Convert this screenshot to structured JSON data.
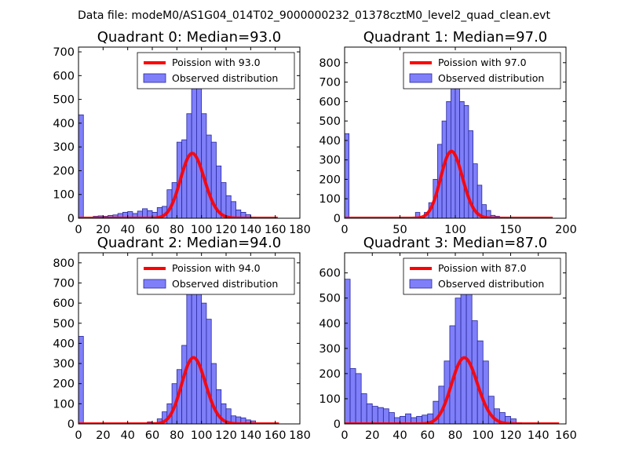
{
  "figure": {
    "suptitle": "Data file: modeM0/AS1G04_014T02_9000000232_01378cztM0_level2_quad_clean.evt"
  },
  "colors": {
    "bar_fill": "#7f7ff9",
    "bar_edge": "#27279c",
    "poisson_line": "#ff0000"
  },
  "chart_data": [
    {
      "type": "bar",
      "title": "Quadrant 0: Median=93.0",
      "xlim": [
        0,
        180
      ],
      "ylim": [
        0,
        720
      ],
      "xticks": [
        0,
        20,
        40,
        60,
        80,
        100,
        120,
        140,
        160,
        180
      ],
      "yticks": [
        0,
        100,
        200,
        300,
        400,
        500,
        600,
        700
      ],
      "legend": [
        "Poission with 93.0",
        "Observed distribution"
      ],
      "legend_position": "top-right",
      "bin_width": 4,
      "bins": [
        {
          "x": 0,
          "y": 435
        },
        {
          "x": 4,
          "y": 0
        },
        {
          "x": 8,
          "y": 3
        },
        {
          "x": 12,
          "y": 8
        },
        {
          "x": 16,
          "y": 10
        },
        {
          "x": 20,
          "y": 8
        },
        {
          "x": 24,
          "y": 12
        },
        {
          "x": 28,
          "y": 14
        },
        {
          "x": 32,
          "y": 20
        },
        {
          "x": 36,
          "y": 25
        },
        {
          "x": 40,
          "y": 28
        },
        {
          "x": 44,
          "y": 20
        },
        {
          "x": 48,
          "y": 30
        },
        {
          "x": 52,
          "y": 40
        },
        {
          "x": 56,
          "y": 32
        },
        {
          "x": 60,
          "y": 25
        },
        {
          "x": 64,
          "y": 45
        },
        {
          "x": 68,
          "y": 50
        },
        {
          "x": 72,
          "y": 120
        },
        {
          "x": 76,
          "y": 150
        },
        {
          "x": 80,
          "y": 320
        },
        {
          "x": 84,
          "y": 330
        },
        {
          "x": 88,
          "y": 440
        },
        {
          "x": 92,
          "y": 690
        },
        {
          "x": 96,
          "y": 600
        },
        {
          "x": 100,
          "y": 440
        },
        {
          "x": 104,
          "y": 350
        },
        {
          "x": 108,
          "y": 320
        },
        {
          "x": 112,
          "y": 220
        },
        {
          "x": 116,
          "y": 150
        },
        {
          "x": 120,
          "y": 95
        },
        {
          "x": 124,
          "y": 70
        },
        {
          "x": 128,
          "y": 35
        },
        {
          "x": 132,
          "y": 25
        },
        {
          "x": 136,
          "y": 15
        },
        {
          "x": 140,
          "y": 5
        }
      ],
      "poisson_mean": 93.0,
      "poisson_scale": 6600,
      "poisson_xrange": [
        0,
        162
      ]
    },
    {
      "type": "bar",
      "title": "Quadrant 1: Median=97.0",
      "xlim": [
        0,
        200
      ],
      "ylim": [
        0,
        880
      ],
      "xticks": [
        0,
        50,
        100,
        150,
        200
      ],
      "yticks": [
        0,
        100,
        200,
        300,
        400,
        500,
        600,
        700,
        800
      ],
      "legend": [
        "Poission with 97.0",
        "Observed distribution"
      ],
      "legend_position": "top-right",
      "bin_width": 4,
      "bins": [
        {
          "x": 0,
          "y": 435
        },
        {
          "x": 64,
          "y": 30
        },
        {
          "x": 68,
          "y": 5
        },
        {
          "x": 72,
          "y": 30
        },
        {
          "x": 76,
          "y": 80
        },
        {
          "x": 80,
          "y": 200
        },
        {
          "x": 84,
          "y": 380
        },
        {
          "x": 88,
          "y": 500
        },
        {
          "x": 92,
          "y": 600
        },
        {
          "x": 96,
          "y": 790
        },
        {
          "x": 100,
          "y": 840
        },
        {
          "x": 104,
          "y": 600
        },
        {
          "x": 108,
          "y": 580
        },
        {
          "x": 112,
          "y": 450
        },
        {
          "x": 116,
          "y": 280
        },
        {
          "x": 120,
          "y": 170
        },
        {
          "x": 124,
          "y": 70
        },
        {
          "x": 128,
          "y": 40
        },
        {
          "x": 132,
          "y": 15
        },
        {
          "x": 136,
          "y": 10
        },
        {
          "x": 140,
          "y": 5
        },
        {
          "x": 144,
          "y": 3
        }
      ],
      "poisson_mean": 97.0,
      "poisson_scale": 8500,
      "poisson_xrange": [
        0,
        188
      ]
    },
    {
      "type": "bar",
      "title": "Quadrant 2: Median=94.0",
      "xlim": [
        0,
        180
      ],
      "ylim": [
        0,
        850
      ],
      "xticks": [
        0,
        20,
        40,
        60,
        80,
        100,
        120,
        140,
        160,
        180
      ],
      "yticks": [
        0,
        100,
        200,
        300,
        400,
        500,
        600,
        700,
        800
      ],
      "legend": [
        "Poission with 94.0",
        "Observed distribution"
      ],
      "legend_position": "top-right",
      "bin_width": 4,
      "bins": [
        {
          "x": 0,
          "y": 435
        },
        {
          "x": 56,
          "y": 10
        },
        {
          "x": 60,
          "y": 5
        },
        {
          "x": 64,
          "y": 25
        },
        {
          "x": 68,
          "y": 60
        },
        {
          "x": 72,
          "y": 100
        },
        {
          "x": 76,
          "y": 200
        },
        {
          "x": 80,
          "y": 270
        },
        {
          "x": 84,
          "y": 390
        },
        {
          "x": 88,
          "y": 650
        },
        {
          "x": 92,
          "y": 700
        },
        {
          "x": 96,
          "y": 780
        },
        {
          "x": 100,
          "y": 600
        },
        {
          "x": 104,
          "y": 520
        },
        {
          "x": 108,
          "y": 300
        },
        {
          "x": 112,
          "y": 170
        },
        {
          "x": 116,
          "y": 100
        },
        {
          "x": 120,
          "y": 75
        },
        {
          "x": 124,
          "y": 40
        },
        {
          "x": 128,
          "y": 35
        },
        {
          "x": 132,
          "y": 30
        },
        {
          "x": 136,
          "y": 20
        },
        {
          "x": 140,
          "y": 15
        }
      ],
      "poisson_mean": 94.0,
      "poisson_scale": 8000,
      "poisson_xrange": [
        0,
        163
      ]
    },
    {
      "type": "bar",
      "title": "Quadrant 3: Median=87.0",
      "xlim": [
        0,
        160
      ],
      "ylim": [
        0,
        680
      ],
      "xticks": [
        0,
        20,
        40,
        60,
        80,
        100,
        120,
        140,
        160
      ],
      "yticks": [
        0,
        100,
        200,
        300,
        400,
        500,
        600
      ],
      "legend": [
        "Poission with 87.0",
        "Observed distribution"
      ],
      "legend_position": "top-right",
      "bin_width": 4,
      "bins": [
        {
          "x": 0,
          "y": 575
        },
        {
          "x": 4,
          "y": 220
        },
        {
          "x": 8,
          "y": 200
        },
        {
          "x": 12,
          "y": 120
        },
        {
          "x": 16,
          "y": 80
        },
        {
          "x": 20,
          "y": 70
        },
        {
          "x": 24,
          "y": 65
        },
        {
          "x": 28,
          "y": 60
        },
        {
          "x": 32,
          "y": 45
        },
        {
          "x": 36,
          "y": 25
        },
        {
          "x": 40,
          "y": 30
        },
        {
          "x": 44,
          "y": 40
        },
        {
          "x": 48,
          "y": 25
        },
        {
          "x": 52,
          "y": 30
        },
        {
          "x": 56,
          "y": 35
        },
        {
          "x": 60,
          "y": 40
        },
        {
          "x": 64,
          "y": 90
        },
        {
          "x": 68,
          "y": 150
        },
        {
          "x": 72,
          "y": 250
        },
        {
          "x": 76,
          "y": 390
        },
        {
          "x": 80,
          "y": 500
        },
        {
          "x": 84,
          "y": 600
        },
        {
          "x": 88,
          "y": 650
        },
        {
          "x": 92,
          "y": 410
        },
        {
          "x": 96,
          "y": 330
        },
        {
          "x": 100,
          "y": 250
        },
        {
          "x": 104,
          "y": 110
        },
        {
          "x": 108,
          "y": 60
        },
        {
          "x": 112,
          "y": 45
        },
        {
          "x": 116,
          "y": 30
        },
        {
          "x": 120,
          "y": 20
        },
        {
          "x": 124,
          "y": 5
        }
      ],
      "poisson_mean": 87.0,
      "poisson_scale": 6150,
      "poisson_xrange": [
        0,
        155
      ]
    }
  ]
}
